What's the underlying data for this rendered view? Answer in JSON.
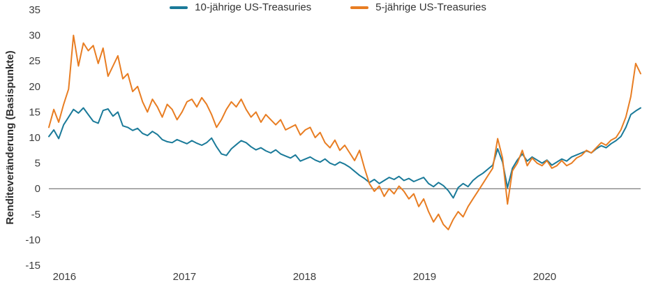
{
  "chart_data": {
    "type": "line",
    "title": "",
    "xlabel": "",
    "ylabel": "Renditeveränderung (Basispunkte)",
    "ylim": [
      -15,
      35
    ],
    "y_ticks": [
      35,
      30,
      25,
      20,
      15,
      10,
      5,
      0,
      -5,
      -10,
      -15
    ],
    "x_ticks": [
      2016,
      2017,
      2018,
      2019,
      2020
    ],
    "x_domain": [
      2015.87,
      2020.8
    ],
    "grid": false,
    "zero_line": true,
    "legend_position": "top",
    "series": [
      {
        "name": "10-jährige US-Treasuries",
        "color": "#1a7a99",
        "values": [
          10.2,
          11.5,
          9.8,
          12.5,
          14.0,
          15.5,
          14.8,
          15.8,
          14.5,
          13.2,
          12.8,
          15.3,
          15.6,
          14.2,
          15.0,
          12.3,
          12.0,
          11.4,
          11.8,
          10.8,
          10.4,
          11.2,
          10.6,
          9.6,
          9.2,
          9.0,
          9.6,
          9.2,
          8.8,
          9.4,
          8.9,
          8.5,
          9.0,
          9.9,
          8.2,
          6.8,
          6.5,
          7.8,
          8.6,
          9.4,
          9.0,
          8.2,
          7.6,
          8.0,
          7.4,
          7.0,
          7.6,
          6.8,
          6.4,
          6.0,
          6.6,
          5.4,
          5.8,
          6.2,
          5.6,
          5.2,
          5.8,
          5.0,
          4.6,
          5.2,
          4.8,
          4.2,
          3.4,
          2.6,
          2.0,
          1.2,
          1.8,
          1.0,
          1.6,
          2.2,
          1.8,
          2.4,
          1.6,
          2.0,
          1.4,
          1.8,
          2.2,
          1.0,
          0.4,
          1.2,
          0.6,
          -0.4,
          -1.8,
          0.2,
          1.0,
          0.4,
          1.6,
          2.4,
          3.0,
          3.8,
          4.6,
          7.8,
          5.2,
          0.2,
          4.0,
          5.6,
          6.8,
          5.4,
          6.2,
          5.6,
          5.0,
          5.6,
          4.6,
          5.2,
          5.8,
          5.4,
          6.2,
          6.6,
          7.0,
          7.4,
          7.0,
          7.8,
          8.4,
          8.0,
          8.8,
          9.4,
          10.2,
          12.0,
          14.5,
          15.2,
          15.8
        ]
      },
      {
        "name": "5-jährige US-Treasuries",
        "color": "#e87d22",
        "values": [
          12.0,
          15.5,
          13.0,
          16.5,
          19.5,
          30.0,
          24.0,
          28.5,
          27.0,
          28.0,
          24.5,
          27.5,
          22.0,
          24.0,
          26.0,
          21.5,
          22.5,
          19.0,
          20.0,
          17.0,
          15.0,
          17.5,
          16.0,
          14.0,
          16.5,
          15.5,
          13.5,
          15.0,
          17.0,
          17.5,
          16.0,
          17.8,
          16.5,
          14.5,
          12.0,
          13.5,
          15.5,
          17.0,
          16.0,
          17.5,
          15.5,
          14.0,
          15.0,
          13.0,
          14.5,
          13.5,
          12.5,
          13.5,
          11.5,
          12.0,
          12.5,
          10.5,
          11.5,
          12.0,
          10.0,
          11.0,
          9.0,
          8.0,
          9.5,
          7.5,
          8.5,
          7.0,
          5.5,
          7.5,
          4.0,
          1.0,
          -0.5,
          0.5,
          -1.5,
          0.0,
          -1.0,
          0.5,
          -0.5,
          -2.0,
          -1.0,
          -3.5,
          -2.0,
          -4.5,
          -6.5,
          -5.0,
          -7.0,
          -8.0,
          -6.0,
          -4.5,
          -5.5,
          -3.5,
          -2.0,
          -0.5,
          1.0,
          2.5,
          4.0,
          9.8,
          6.0,
          -3.0,
          3.5,
          5.0,
          7.5,
          4.5,
          6.0,
          5.0,
          4.5,
          5.5,
          4.0,
          4.5,
          5.5,
          4.5,
          5.0,
          6.0,
          6.5,
          7.5,
          7.0,
          8.0,
          9.0,
          8.5,
          9.5,
          10.0,
          11.5,
          14.0,
          18.0,
          24.5,
          22.5
        ]
      }
    ]
  }
}
